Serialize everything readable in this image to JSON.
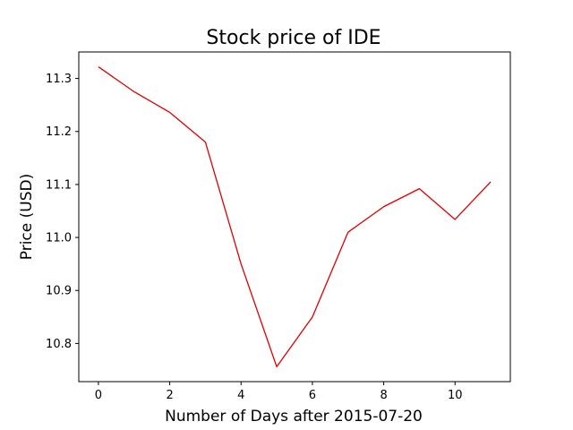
{
  "chart_data": {
    "type": "line",
    "title": "Stock price of IDE",
    "xlabel": "Number of Days after 2015-07-20",
    "ylabel": "Price (USD)",
    "x": [
      0,
      1,
      2,
      3,
      4,
      5,
      6,
      7,
      8,
      9,
      10,
      11
    ],
    "series": [
      {
        "values": [
          11.322,
          11.275,
          11.236,
          11.18,
          10.95,
          10.756,
          10.85,
          11.01,
          11.058,
          11.092,
          11.034,
          11.105
        ]
      }
    ],
    "xlim": [
      -0.55,
      11.55
    ],
    "ylim": [
      10.728,
      11.35
    ],
    "xticks": [
      0,
      2,
      4,
      6,
      8,
      10
    ],
    "xtick_labels": [
      "0",
      "2",
      "4",
      "6",
      "8",
      "10"
    ],
    "yticks": [
      10.8,
      10.9,
      11.0,
      11.1,
      11.2,
      11.3
    ],
    "ytick_labels": [
      "10.8",
      "10.9",
      "11.0",
      "11.1",
      "11.2",
      "11.3"
    ],
    "grid": false,
    "line_color": "#dd0000"
  }
}
